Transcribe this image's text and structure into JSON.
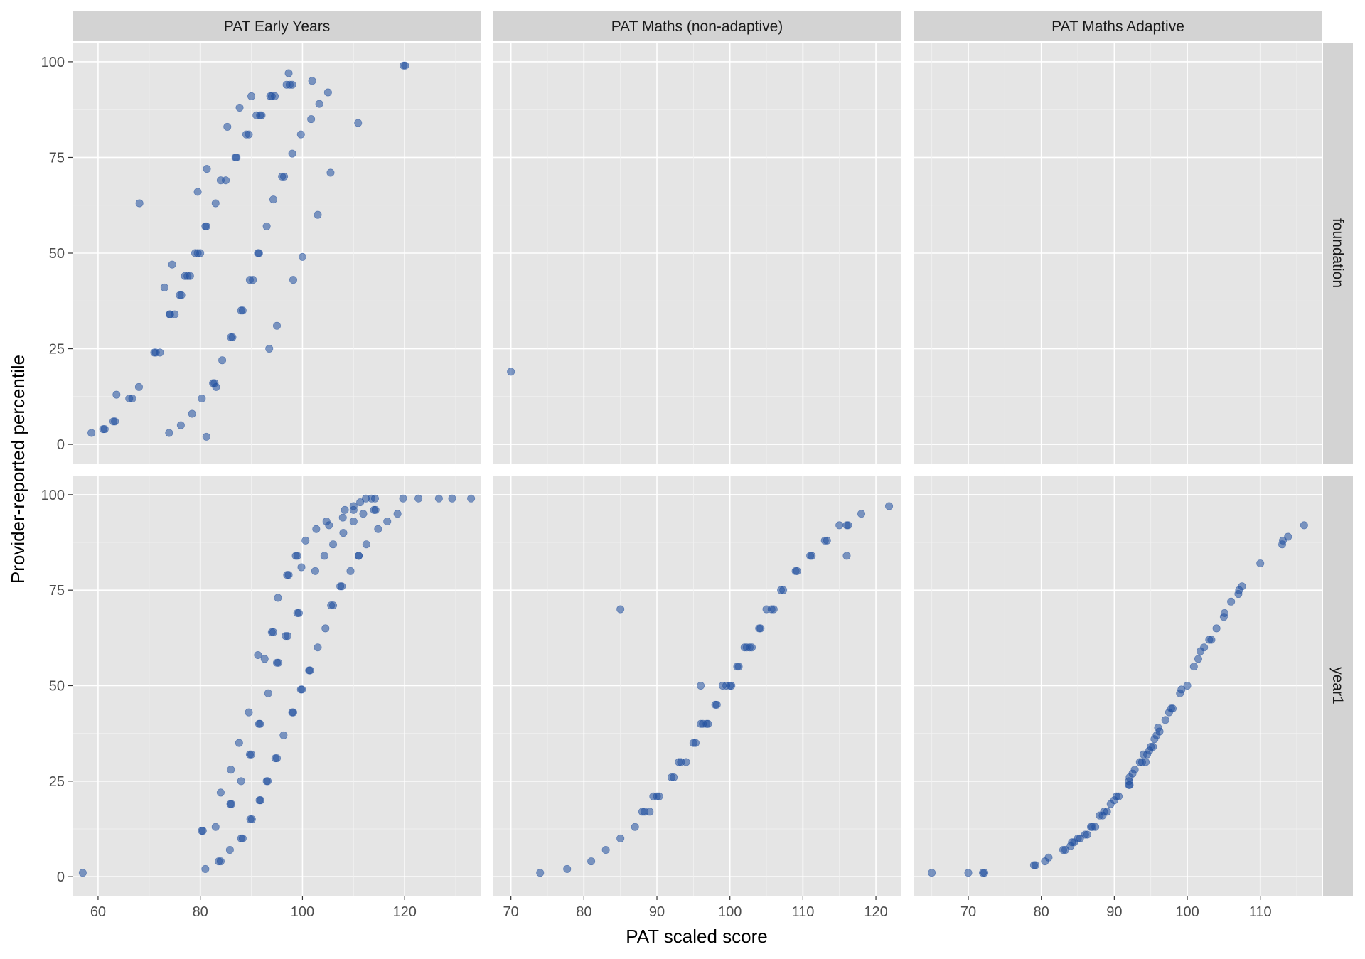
{
  "chart_data": {
    "type": "scatter",
    "xlabel": "PAT scaled score",
    "ylabel": "Provider-reported percentile",
    "ylim": [
      0,
      100
    ],
    "y_ticks": [
      0,
      25,
      50,
      75,
      100
    ],
    "columns": [
      {
        "label": "PAT Early Years",
        "xlim": [
          55,
          135
        ],
        "x_ticks": [
          60,
          80,
          100,
          120
        ]
      },
      {
        "label": "PAT Maths (non-adaptive)",
        "xlim": [
          67.5,
          123.5
        ],
        "x_ticks": [
          70,
          80,
          90,
          100,
          110,
          120
        ]
      },
      {
        "label": "PAT Maths Adaptive",
        "xlim": [
          62.5,
          118.5
        ],
        "x_ticks": [
          70,
          80,
          90,
          100,
          110
        ]
      }
    ],
    "rows": [
      {
        "label": "foundation"
      },
      {
        "label": "year1"
      }
    ],
    "color": "#1f4e9e",
    "panels": [
      {
        "col": 0,
        "row": 0,
        "points": [
          [
            58.7,
            3
          ],
          [
            61,
            4
          ],
          [
            61.3,
            4
          ],
          [
            63,
            6
          ],
          [
            63.3,
            6
          ],
          [
            63.6,
            13
          ],
          [
            66.1,
            12
          ],
          [
            66.7,
            12
          ],
          [
            68,
            15
          ],
          [
            68.1,
            63
          ],
          [
            71,
            24
          ],
          [
            71.3,
            24
          ],
          [
            72.1,
            24
          ],
          [
            73,
            41
          ],
          [
            74,
            34
          ],
          [
            73.9,
            3
          ],
          [
            74.1,
            34
          ],
          [
            74.5,
            47
          ],
          [
            75,
            34
          ],
          [
            76,
            39
          ],
          [
            76.3,
            39
          ],
          [
            76.2,
            5
          ],
          [
            77,
            44
          ],
          [
            77.5,
            44
          ],
          [
            78,
            44
          ],
          [
            78.4,
            8
          ],
          [
            79,
            50
          ],
          [
            79.5,
            50
          ],
          [
            80,
            50
          ],
          [
            79.5,
            66
          ],
          [
            80.3,
            12
          ],
          [
            81,
            57
          ],
          [
            81.2,
            57
          ],
          [
            81.3,
            72
          ],
          [
            81.2,
            2
          ],
          [
            82.5,
            16
          ],
          [
            82.8,
            16
          ],
          [
            83.1,
            15
          ],
          [
            83,
            63
          ],
          [
            84,
            69
          ],
          [
            84.3,
            22
          ],
          [
            85,
            69
          ],
          [
            85.3,
            83
          ],
          [
            86,
            28
          ],
          [
            86.3,
            28
          ],
          [
            86.9,
            75
          ],
          [
            87.1,
            75
          ],
          [
            87.7,
            88
          ],
          [
            88,
            35
          ],
          [
            88.3,
            35
          ],
          [
            89,
            81
          ],
          [
            89.5,
            81
          ],
          [
            89.7,
            43
          ],
          [
            90,
            91
          ],
          [
            90.3,
            43
          ],
          [
            91,
            86
          ],
          [
            91.3,
            50
          ],
          [
            91.5,
            50
          ],
          [
            91.7,
            86
          ],
          [
            92,
            86
          ],
          [
            93,
            57
          ],
          [
            93.5,
            25
          ],
          [
            93.7,
            91
          ],
          [
            94,
            91
          ],
          [
            94.3,
            64
          ],
          [
            94.6,
            91
          ],
          [
            95,
            31
          ],
          [
            96,
            70
          ],
          [
            96.4,
            70
          ],
          [
            96.9,
            94
          ],
          [
            97.3,
            97
          ],
          [
            97.5,
            94
          ],
          [
            98,
            76
          ],
          [
            98,
            94
          ],
          [
            98.2,
            43
          ],
          [
            99.7,
            81
          ],
          [
            100,
            49
          ],
          [
            101.7,
            85
          ],
          [
            101.9,
            95
          ],
          [
            103,
            60
          ],
          [
            103.3,
            89
          ],
          [
            105,
            92
          ],
          [
            105.5,
            71
          ],
          [
            110.9,
            84
          ],
          [
            119.8,
            99
          ],
          [
            120.1,
            99
          ]
        ]
      },
      {
        "col": 1,
        "row": 0,
        "points": [
          [
            70,
            19
          ]
        ]
      },
      {
        "col": 2,
        "row": 0,
        "points": []
      },
      {
        "col": 0,
        "row": 1,
        "points": [
          [
            57,
            1
          ],
          [
            80.5,
            12
          ],
          [
            80.3,
            12
          ],
          [
            81,
            2
          ],
          [
            83,
            13
          ],
          [
            83.6,
            4
          ],
          [
            84,
            4
          ],
          [
            84,
            22
          ],
          [
            85.9,
            19
          ],
          [
            86.1,
            19
          ],
          [
            85.8,
            7
          ],
          [
            86,
            28
          ],
          [
            87.6,
            35
          ],
          [
            88,
            25
          ],
          [
            88,
            10
          ],
          [
            88.3,
            10
          ],
          [
            89.5,
            43
          ],
          [
            89.7,
            32
          ],
          [
            89.8,
            15
          ],
          [
            90,
            32
          ],
          [
            90.1,
            15
          ],
          [
            91.3,
            58
          ],
          [
            91.5,
            40
          ],
          [
            91.7,
            40
          ],
          [
            91.6,
            20
          ],
          [
            91.8,
            20
          ],
          [
            92.6,
            57
          ],
          [
            93,
            25
          ],
          [
            93.2,
            25
          ],
          [
            93.3,
            48
          ],
          [
            94,
            64
          ],
          [
            94.3,
            64
          ],
          [
            94.7,
            31
          ],
          [
            95,
            31
          ],
          [
            95.2,
            73
          ],
          [
            95,
            56
          ],
          [
            95.3,
            56
          ],
          [
            96.3,
            37
          ],
          [
            96.7,
            63
          ],
          [
            97,
            79
          ],
          [
            97.1,
            63
          ],
          [
            97.3,
            79
          ],
          [
            98,
            43
          ],
          [
            98.2,
            43
          ],
          [
            98.7,
            84
          ],
          [
            99,
            84
          ],
          [
            99,
            69
          ],
          [
            99.3,
            69
          ],
          [
            99.8,
            81
          ],
          [
            99.7,
            49
          ],
          [
            99.9,
            49
          ],
          [
            100.6,
            88
          ],
          [
            101.3,
            54
          ],
          [
            101.5,
            54
          ],
          [
            102.5,
            80
          ],
          [
            102.7,
            91
          ],
          [
            103,
            60
          ],
          [
            104.3,
            84
          ],
          [
            104.5,
            65
          ],
          [
            104.7,
            93
          ],
          [
            105.2,
            92
          ],
          [
            105.6,
            71
          ],
          [
            106,
            71
          ],
          [
            106,
            87
          ],
          [
            107.4,
            76
          ],
          [
            107.7,
            76
          ],
          [
            107.9,
            94
          ],
          [
            108,
            90
          ],
          [
            108.3,
            96
          ],
          [
            109.4,
            80
          ],
          [
            110,
            97
          ],
          [
            110,
            96
          ],
          [
            110,
            93
          ],
          [
            111,
            84
          ],
          [
            111,
            84
          ],
          [
            111.3,
            98
          ],
          [
            111.9,
            95
          ],
          [
            112.4,
            99
          ],
          [
            112.5,
            87
          ],
          [
            113.5,
            99
          ],
          [
            114,
            96
          ],
          [
            114.2,
            99
          ],
          [
            114.3,
            96
          ],
          [
            114.8,
            91
          ],
          [
            116.6,
            93
          ],
          [
            118.6,
            95
          ],
          [
            119.7,
            99
          ],
          [
            122.7,
            99
          ],
          [
            126.7,
            99
          ],
          [
            129.3,
            99
          ],
          [
            133,
            99
          ]
        ]
      },
      {
        "col": 1,
        "row": 1,
        "points": [
          [
            74,
            1
          ],
          [
            77.7,
            2
          ],
          [
            81,
            4
          ],
          [
            83,
            7
          ],
          [
            85,
            10
          ],
          [
            85,
            70
          ],
          [
            87,
            13
          ],
          [
            88,
            17
          ],
          [
            88.3,
            17
          ],
          [
            89,
            17
          ],
          [
            89.5,
            21
          ],
          [
            90,
            21
          ],
          [
            90.3,
            21
          ],
          [
            92,
            26
          ],
          [
            92.3,
            26
          ],
          [
            93,
            30
          ],
          [
            93.3,
            30
          ],
          [
            94,
            30
          ],
          [
            95,
            35
          ],
          [
            95.3,
            35
          ],
          [
            96,
            40
          ],
          [
            96,
            50
          ],
          [
            96.3,
            40
          ],
          [
            96.8,
            40
          ],
          [
            97,
            40
          ],
          [
            98,
            45
          ],
          [
            98.2,
            45
          ],
          [
            99,
            50
          ],
          [
            99.5,
            50
          ],
          [
            100,
            50
          ],
          [
            100.2,
            50
          ],
          [
            101,
            55
          ],
          [
            101.2,
            55
          ],
          [
            102,
            60
          ],
          [
            102.3,
            60
          ],
          [
            102.7,
            60
          ],
          [
            103,
            60
          ],
          [
            104,
            65
          ],
          [
            104.2,
            65
          ],
          [
            105,
            70
          ],
          [
            105.7,
            70
          ],
          [
            106,
            70
          ],
          [
            107,
            75
          ],
          [
            107.3,
            75
          ],
          [
            109,
            80
          ],
          [
            109.2,
            80
          ],
          [
            111,
            84
          ],
          [
            111.2,
            84
          ],
          [
            113,
            88
          ],
          [
            113.3,
            88
          ],
          [
            115,
            92
          ],
          [
            116,
            92
          ],
          [
            116.2,
            92
          ],
          [
            116,
            84
          ],
          [
            118,
            95
          ],
          [
            121.8,
            97
          ]
        ]
      },
      {
        "col": 2,
        "row": 1,
        "points": [
          [
            65,
            1
          ],
          [
            70,
            1
          ],
          [
            72,
            1
          ],
          [
            72.2,
            1
          ],
          [
            79,
            3
          ],
          [
            79.2,
            3
          ],
          [
            80.5,
            4
          ],
          [
            81,
            5
          ],
          [
            83,
            7
          ],
          [
            83.3,
            7
          ],
          [
            84,
            8
          ],
          [
            84.2,
            9
          ],
          [
            84.5,
            9
          ],
          [
            85,
            10
          ],
          [
            85.3,
            10
          ],
          [
            86,
            11
          ],
          [
            86.3,
            11
          ],
          [
            86.8,
            13
          ],
          [
            87,
            13
          ],
          [
            87.4,
            13
          ],
          [
            88,
            16
          ],
          [
            88.4,
            16
          ],
          [
            88.6,
            17
          ],
          [
            89,
            17
          ],
          [
            89.5,
            19
          ],
          [
            90,
            20
          ],
          [
            90.3,
            21
          ],
          [
            90.6,
            21
          ],
          [
            92,
            24
          ],
          [
            92,
            25
          ],
          [
            92.1,
            24
          ],
          [
            92.1,
            26
          ],
          [
            92.5,
            27
          ],
          [
            92.8,
            28
          ],
          [
            93.5,
            30
          ],
          [
            93.8,
            30
          ],
          [
            94,
            32
          ],
          [
            94.3,
            30
          ],
          [
            94.5,
            32
          ],
          [
            94.8,
            33
          ],
          [
            95,
            34
          ],
          [
            95.3,
            34
          ],
          [
            95.5,
            36
          ],
          [
            95.8,
            37
          ],
          [
            96,
            39
          ],
          [
            96.2,
            38
          ],
          [
            97,
            41
          ],
          [
            97.5,
            43
          ],
          [
            97.8,
            44
          ],
          [
            98,
            44
          ],
          [
            99,
            48
          ],
          [
            99.2,
            49
          ],
          [
            100,
            50
          ],
          [
            100.9,
            55
          ],
          [
            101.5,
            57
          ],
          [
            101.8,
            59
          ],
          [
            102.3,
            60
          ],
          [
            103,
            62
          ],
          [
            103.3,
            62
          ],
          [
            104,
            65
          ],
          [
            105,
            68
          ],
          [
            105.1,
            69
          ],
          [
            106,
            72
          ],
          [
            107,
            74
          ],
          [
            107.1,
            75
          ],
          [
            107.5,
            76
          ],
          [
            110,
            82
          ],
          [
            113,
            87
          ],
          [
            113.1,
            88
          ],
          [
            113.8,
            89
          ],
          [
            116,
            92
          ]
        ]
      }
    ]
  }
}
